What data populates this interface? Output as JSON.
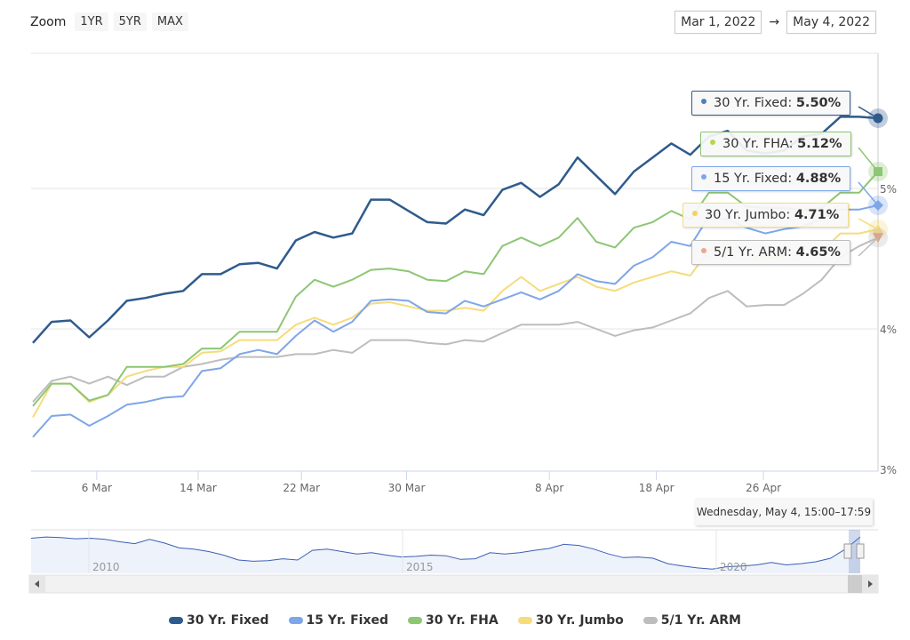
{
  "controls": {
    "zoom_label": "Zoom",
    "zoom_buttons": [
      "1YR",
      "5YR",
      "MAX"
    ],
    "range_from": "Mar 1, 2022",
    "range_arrow": "→",
    "range_to": "May 4, 2022"
  },
  "tooltip": {
    "header": "Wednesday, May 4, 15:00–17:59",
    "items": [
      {
        "label": "30 Yr. Fixed: ",
        "value": "5.50%",
        "color": "#2f5b8c",
        "dot": "#4a7fc1"
      },
      {
        "label": "30 Yr. FHA: ",
        "value": "5.12%",
        "color": "#8dc674",
        "dot": "#b5d64a"
      },
      {
        "label": "15 Yr. Fixed: ",
        "value": "4.88%",
        "color": "#7ea6e8",
        "dot": "#7ea6e8"
      },
      {
        "label": "30 Yr. Jumbo: ",
        "value": "4.71%",
        "color": "#f5dc7c",
        "dot": "#f5d25a"
      },
      {
        "label": "5/1 Yr. ARM: ",
        "value": "4.65%",
        "color": "#bdbdbd",
        "dot": "#e8a890"
      }
    ]
  },
  "navigator": {
    "year_labels": [
      "2010",
      "2015",
      "2020"
    ],
    "values": [
      5.4,
      5.5,
      5.45,
      5.35,
      5.4,
      5.3,
      5.1,
      4.95,
      5.3,
      5.0,
      4.6,
      4.5,
      4.3,
      4.0,
      3.6,
      3.5,
      3.55,
      3.7,
      3.6,
      4.4,
      4.5,
      4.3,
      4.1,
      4.2,
      4.0,
      3.85,
      3.9,
      4.0,
      3.95,
      3.65,
      3.7,
      4.2,
      4.1,
      4.2,
      4.4,
      4.55,
      4.9,
      4.8,
      4.5,
      4.1,
      3.8,
      3.85,
      3.75,
      3.3,
      3.1,
      2.95,
      2.85,
      3.05,
      3.1,
      3.2,
      3.4,
      3.2,
      3.3,
      3.45,
      3.75,
      4.5,
      5.5
    ]
  },
  "chart_data": {
    "type": "line",
    "title": "",
    "xlabel": "",
    "ylabel": "",
    "x_unit": "data point index (Mar 1 – May 4, 2022)",
    "x_ticks": [
      {
        "label": "6 Mar",
        "at": 3.4
      },
      {
        "label": "14 Mar",
        "at": 8.8
      },
      {
        "label": "22 Mar",
        "at": 14.3
      },
      {
        "label": "30 Mar",
        "at": 19.9
      },
      {
        "label": "8 Apr",
        "at": 27.5
      },
      {
        "label": "18 Apr",
        "at": 33.2
      },
      {
        "label": "26 Apr",
        "at": 38.9
      }
    ],
    "y_ticks": [
      {
        "label": "3%",
        "value": 3
      },
      {
        "label": "4%",
        "value": 4
      },
      {
        "label": "5%",
        "value": 5
      }
    ],
    "ylim": [
      3,
      5.96
    ],
    "xlim": [
      0,
      45
    ],
    "grid": true,
    "legend_position": "bottom",
    "series": [
      {
        "name": "30 Yr. Fixed",
        "color": "#2f5b8c",
        "marker": "circle",
        "values": [
          3.9,
          4.05,
          4.06,
          3.94,
          4.06,
          4.2,
          4.22,
          4.25,
          4.27,
          4.39,
          4.39,
          4.46,
          4.47,
          4.43,
          4.63,
          4.69,
          4.65,
          4.68,
          4.92,
          4.92,
          4.84,
          4.76,
          4.75,
          4.85,
          4.81,
          4.99,
          5.04,
          4.94,
          5.03,
          5.22,
          5.09,
          4.96,
          5.12,
          5.22,
          5.32,
          5.24,
          5.37,
          5.41,
          5.27,
          5.25,
          5.27,
          5.37,
          5.39,
          5.51,
          5.51,
          5.5
        ]
      },
      {
        "name": "15 Yr. Fixed",
        "color": "#7ea6e8",
        "marker": "diamond",
        "values": [
          3.23,
          3.38,
          3.39,
          3.31,
          3.38,
          3.46,
          3.48,
          3.51,
          3.52,
          3.7,
          3.72,
          3.82,
          3.85,
          3.82,
          3.95,
          4.06,
          3.98,
          4.05,
          4.2,
          4.21,
          4.2,
          4.12,
          4.11,
          4.2,
          4.16,
          4.21,
          4.26,
          4.21,
          4.27,
          4.39,
          4.34,
          4.32,
          4.45,
          4.51,
          4.62,
          4.59,
          4.8,
          4.78,
          4.72,
          4.68,
          4.71,
          4.73,
          4.78,
          4.85,
          4.85,
          4.88
        ]
      },
      {
        "name": "30 Yr. FHA",
        "color": "#8dc674",
        "marker": "square",
        "values": [
          3.45,
          3.61,
          3.61,
          3.49,
          3.53,
          3.73,
          3.73,
          3.73,
          3.75,
          3.86,
          3.86,
          3.98,
          3.98,
          3.98,
          4.23,
          4.35,
          4.3,
          4.35,
          4.42,
          4.43,
          4.41,
          4.35,
          4.34,
          4.41,
          4.39,
          4.59,
          4.65,
          4.59,
          4.65,
          4.79,
          4.62,
          4.58,
          4.72,
          4.76,
          4.84,
          4.78,
          4.97,
          4.97,
          4.87,
          4.86,
          4.86,
          4.85,
          4.86,
          4.97,
          4.97,
          5.12
        ]
      },
      {
        "name": "30 Yr. Jumbo",
        "color": "#f5dc7c",
        "marker": "triangle",
        "values": [
          3.37,
          3.61,
          3.61,
          3.48,
          3.53,
          3.66,
          3.7,
          3.73,
          3.73,
          3.83,
          3.84,
          3.92,
          3.92,
          3.92,
          4.03,
          4.08,
          4.03,
          4.08,
          4.18,
          4.19,
          4.16,
          4.13,
          4.13,
          4.15,
          4.13,
          4.27,
          4.37,
          4.27,
          4.32,
          4.37,
          4.3,
          4.27,
          4.33,
          4.37,
          4.41,
          4.38,
          4.56,
          4.58,
          4.53,
          4.51,
          4.52,
          4.53,
          4.55,
          4.68,
          4.68,
          4.71
        ]
      },
      {
        "name": "5/1 Yr. ARM",
        "color": "#bdbdbd",
        "marker": "triangle-down",
        "values": [
          3.48,
          3.63,
          3.66,
          3.61,
          3.66,
          3.6,
          3.66,
          3.66,
          3.73,
          3.75,
          3.78,
          3.8,
          3.8,
          3.8,
          3.82,
          3.82,
          3.85,
          3.83,
          3.92,
          3.92,
          3.92,
          3.9,
          3.89,
          3.92,
          3.91,
          3.97,
          4.03,
          4.03,
          4.03,
          4.05,
          4.0,
          3.95,
          3.99,
          4.01,
          4.06,
          4.11,
          4.22,
          4.27,
          4.16,
          4.17,
          4.17,
          4.25,
          4.35,
          4.51,
          4.59,
          4.65
        ]
      }
    ]
  }
}
